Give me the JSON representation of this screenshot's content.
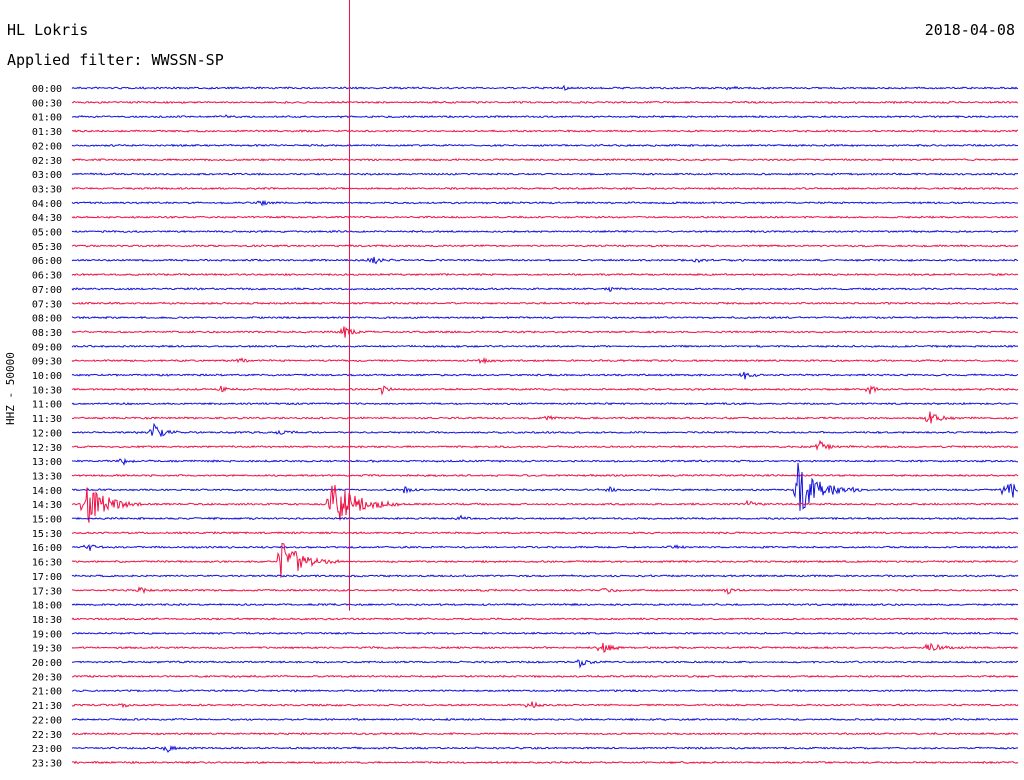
{
  "header": {
    "station": "HL Lokris",
    "date": "2018-04-08",
    "filter": "Applied filter: WWSSN-SP"
  },
  "colors": {
    "trace_a": "#1010dd",
    "trace_b": "#ee1144",
    "marker": "#ee1144"
  },
  "chart_data": {
    "type": "line",
    "title": "",
    "ylabel": "HHZ - 50000",
    "row_labels": [
      "00:00",
      "00:30",
      "01:00",
      "01:30",
      "02:00",
      "02:30",
      "03:00",
      "03:30",
      "04:00",
      "04:30",
      "05:00",
      "05:30",
      "06:00",
      "06:30",
      "07:00",
      "07:30",
      "08:00",
      "08:30",
      "09:00",
      "09:30",
      "10:00",
      "10:30",
      "11:00",
      "11:30",
      "12:00",
      "12:30",
      "13:00",
      "13:30",
      "14:00",
      "14:30",
      "15:00",
      "15:30",
      "16:00",
      "16:30",
      "17:00",
      "17:30",
      "18:00",
      "18:30",
      "19:00",
      "19:30",
      "20:00",
      "20:30",
      "21:00",
      "21:30",
      "22:00",
      "22:30",
      "23:00",
      "23:30"
    ],
    "row_minutes": 30,
    "events": [
      {
        "row": 0,
        "minute": 15.6,
        "amp": 0.3
      },
      {
        "row": 0,
        "minute": 20.8,
        "amp": 0.3
      },
      {
        "row": 2,
        "minute": 4.8,
        "amp": 0.3
      },
      {
        "row": 8,
        "minute": 6.0,
        "amp": 0.4
      },
      {
        "row": 12,
        "minute": 9.5,
        "amp": 0.8
      },
      {
        "row": 12,
        "minute": 19.8,
        "amp": 0.5
      },
      {
        "row": 14,
        "minute": 17.0,
        "amp": 0.4
      },
      {
        "row": 17,
        "minute": 8.6,
        "amp": 1.0
      },
      {
        "row": 19,
        "minute": 5.3,
        "amp": 0.5
      },
      {
        "row": 19,
        "minute": 12.9,
        "amp": 0.6
      },
      {
        "row": 20,
        "minute": 21.3,
        "amp": 0.7
      },
      {
        "row": 21,
        "minute": 4.7,
        "amp": 0.5
      },
      {
        "row": 21,
        "minute": 9.8,
        "amp": 0.7
      },
      {
        "row": 21,
        "minute": 25.3,
        "amp": 0.6
      },
      {
        "row": 23,
        "minute": 15.1,
        "amp": 0.4
      },
      {
        "row": 23,
        "minute": 27.2,
        "amp": 1.2
      },
      {
        "row": 24,
        "minute": 2.6,
        "amp": 1.2
      },
      {
        "row": 24,
        "minute": 6.6,
        "amp": 0.6
      },
      {
        "row": 25,
        "minute": 23.7,
        "amp": 0.8
      },
      {
        "row": 26,
        "minute": 1.6,
        "amp": 0.5
      },
      {
        "row": 28,
        "minute": 10.5,
        "amp": 0.6
      },
      {
        "row": 28,
        "minute": 17.0,
        "amp": 0.4
      },
      {
        "row": 28,
        "minute": 23.0,
        "amp": 4.0
      },
      {
        "row": 28,
        "minute": 29.6,
        "amp": 2.0
      },
      {
        "row": 29,
        "minute": 0.4,
        "amp": 3.5
      },
      {
        "row": 29,
        "minute": 8.2,
        "amp": 4.2
      },
      {
        "row": 29,
        "minute": 21.4,
        "amp": 0.6
      },
      {
        "row": 30,
        "minute": 12.3,
        "amp": 0.5
      },
      {
        "row": 32,
        "minute": 0.5,
        "amp": 0.6
      },
      {
        "row": 32,
        "minute": 19.0,
        "amp": 0.5
      },
      {
        "row": 33,
        "minute": 6.6,
        "amp": 3.5
      },
      {
        "row": 35,
        "minute": 2.1,
        "amp": 0.6
      },
      {
        "row": 35,
        "minute": 16.9,
        "amp": 0.6
      },
      {
        "row": 35,
        "minute": 20.8,
        "amp": 0.5
      },
      {
        "row": 39,
        "minute": 16.8,
        "amp": 1.0
      },
      {
        "row": 39,
        "minute": 27.2,
        "amp": 1.0
      },
      {
        "row": 40,
        "minute": 16.1,
        "amp": 0.7
      },
      {
        "row": 43,
        "minute": 1.5,
        "amp": 0.6
      },
      {
        "row": 43,
        "minute": 14.5,
        "amp": 0.7
      },
      {
        "row": 46,
        "minute": 3.0,
        "amp": 0.6
      }
    ],
    "marker_minute": 8.8,
    "marker_rows": [
      0,
      36
    ],
    "grid": false
  }
}
